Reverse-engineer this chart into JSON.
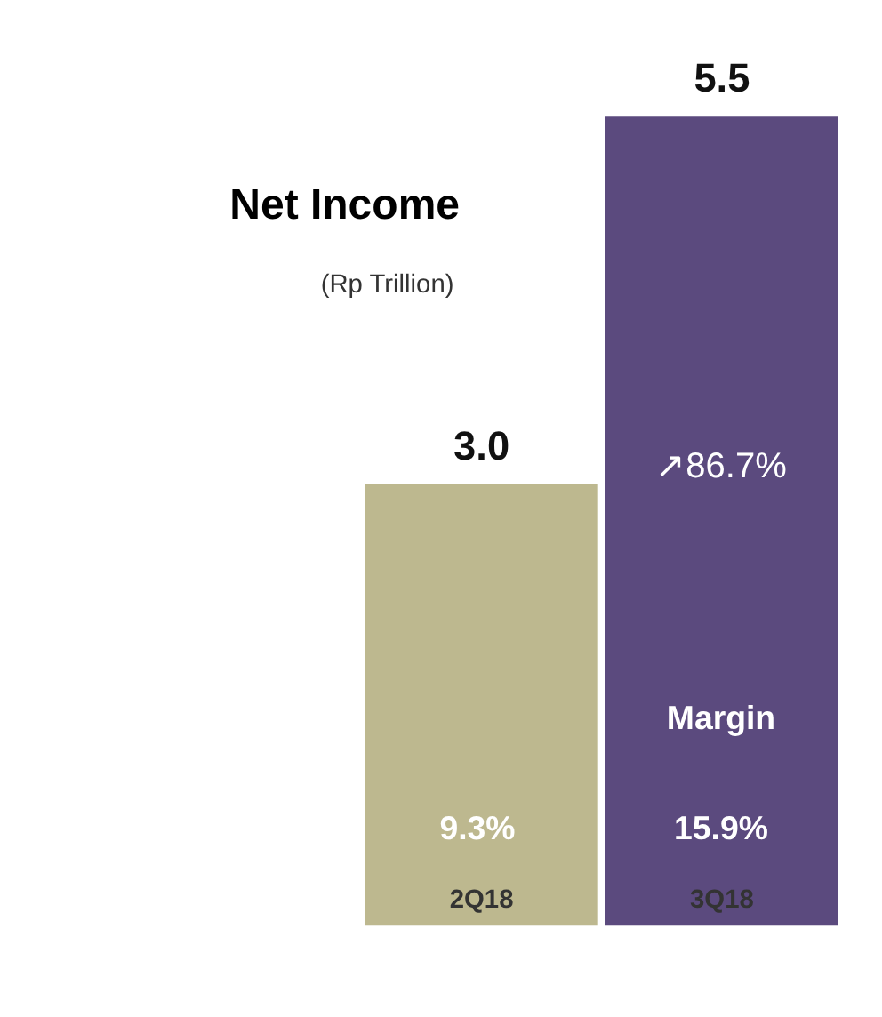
{
  "chart_data": {
    "type": "bar",
    "title": "Net Income",
    "subtitle": "(Rp Trillion)",
    "categories": [
      "2Q18",
      "3Q18"
    ],
    "values": [
      3.0,
      5.5
    ],
    "colors": [
      "#bdb88f",
      "#5b4a7e"
    ],
    "value_labels": [
      "3.0",
      "5.5"
    ],
    "annotations": [
      "↗86.7%",
      "Margin",
      "9.3%",
      "15.9%"
    ],
    "grid": false
  }
}
